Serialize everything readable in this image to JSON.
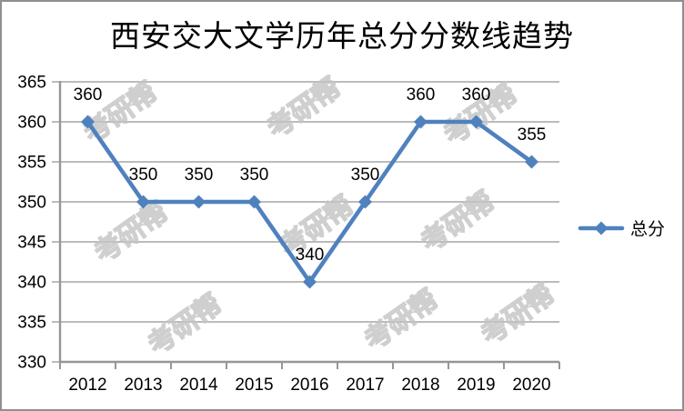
{
  "chart_data": {
    "type": "line",
    "title": "西安交大文学历年总分分数线趋势",
    "categories": [
      "2012",
      "2013",
      "2014",
      "2015",
      "2016",
      "2017",
      "2018",
      "2019",
      "2020"
    ],
    "series": [
      {
        "name": "总分",
        "values": [
          360,
          350,
          350,
          350,
          340,
          350,
          360,
          360,
          355
        ],
        "color": "#4f81bd"
      }
    ],
    "xlabel": "",
    "ylabel": "",
    "ylim": [
      330,
      365
    ],
    "ytick_step": 5,
    "yticks": [
      330,
      335,
      340,
      345,
      350,
      355,
      360,
      365
    ],
    "grid": true,
    "show_data_labels": true,
    "legend_position": "right",
    "marker": "diamond"
  },
  "legend": {
    "label": "总分"
  },
  "watermark": {
    "text": "考研帮"
  },
  "colors": {
    "series": "#4f81bd",
    "gridline": "#a6a6a6",
    "axis": "#969696",
    "label": "#000000",
    "watermark": "#c4c4c4",
    "border": "#8f8f8f",
    "background": "#ffffff"
  }
}
